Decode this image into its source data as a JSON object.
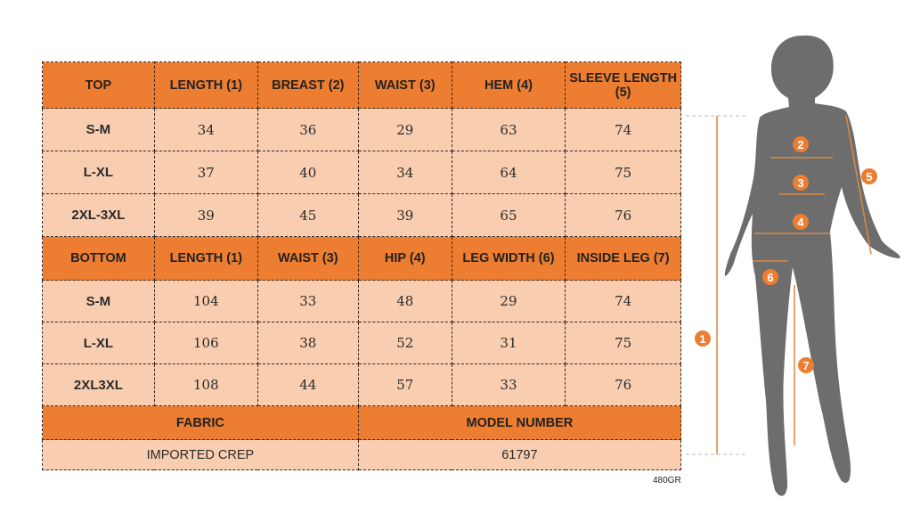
{
  "top": {
    "headers": [
      "TOP",
      "LENGTH (1)",
      "BREAST (2)",
      "WAIST (3)",
      "HEM (4)",
      "SLEEVE LENGTH (5)"
    ],
    "rows": [
      [
        "S-M",
        "34",
        "36",
        "29",
        "63",
        "74"
      ],
      [
        "L-XL",
        "37",
        "40",
        "34",
        "64",
        "75"
      ],
      [
        "2XL-3XL",
        "39",
        "45",
        "39",
        "65",
        "76"
      ]
    ]
  },
  "bottom": {
    "headers": [
      "BOTTOM",
      "LENGTH (1)",
      "WAIST (3)",
      "HIP (4)",
      "LEG WIDTH (6)",
      "INSIDE LEG (7)"
    ],
    "rows": [
      [
        "S-M",
        "104",
        "33",
        "48",
        "29",
        "74"
      ],
      [
        "L-XL",
        "106",
        "38",
        "52",
        "31",
        "75"
      ],
      [
        "2XL3XL",
        "108",
        "44",
        "57",
        "33",
        "76"
      ]
    ]
  },
  "fabric": {
    "label": "FABRIC",
    "value": "IMPORTED CREP"
  },
  "model": {
    "label": "MODEL NUMBER",
    "value": "61797"
  },
  "code": "480GR",
  "markers": [
    "1",
    "2",
    "3",
    "4",
    "5",
    "6",
    "7"
  ],
  "colors": {
    "header": "#ed7d31",
    "cell": "#f9cdb0",
    "silhouette": "#6d6d6d"
  }
}
